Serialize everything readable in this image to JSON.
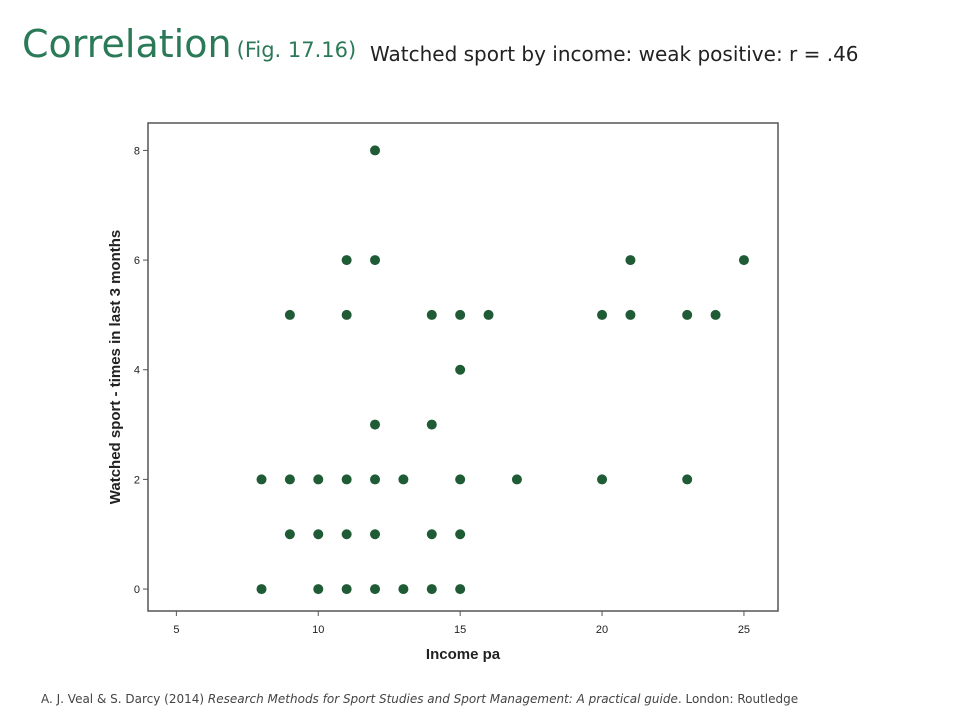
{
  "slide": {
    "title": "Correlation",
    "figure_ref": "(Fig. 17.16)",
    "subtitle": "Watched sport by income: weak positive: r = .46"
  },
  "citation": {
    "authors_year": "A. J. Veal & S. Darcy (2014)",
    "book_title": "Research Methods for Sport Studies and Sport Management: A practical guide",
    "publisher": ". London: Routledge"
  },
  "colors": {
    "title": "#2a7a58",
    "point": "#1f5c36"
  },
  "chart_data": {
    "type": "scatter",
    "title": "",
    "xlabel": "Income pa",
    "ylabel": "Watched sport - times in last 3 months",
    "xlim": [
      4,
      26.2
    ],
    "ylim": [
      -0.4,
      8.5
    ],
    "xticks": [
      5,
      10,
      15,
      20,
      25
    ],
    "yticks": [
      0,
      2,
      4,
      6,
      8
    ],
    "grid": false,
    "points": [
      {
        "x": 12,
        "y": 8
      },
      {
        "x": 11,
        "y": 6
      },
      {
        "x": 12,
        "y": 6
      },
      {
        "x": 21,
        "y": 6
      },
      {
        "x": 25,
        "y": 6
      },
      {
        "x": 9,
        "y": 5
      },
      {
        "x": 11,
        "y": 5
      },
      {
        "x": 14,
        "y": 5
      },
      {
        "x": 15,
        "y": 5
      },
      {
        "x": 16,
        "y": 5
      },
      {
        "x": 20,
        "y": 5
      },
      {
        "x": 21,
        "y": 5
      },
      {
        "x": 23,
        "y": 5
      },
      {
        "x": 24,
        "y": 5
      },
      {
        "x": 15,
        "y": 4
      },
      {
        "x": 12,
        "y": 3
      },
      {
        "x": 14,
        "y": 3
      },
      {
        "x": 8,
        "y": 2
      },
      {
        "x": 9,
        "y": 2
      },
      {
        "x": 10,
        "y": 2
      },
      {
        "x": 11,
        "y": 2
      },
      {
        "x": 12,
        "y": 2
      },
      {
        "x": 13,
        "y": 2
      },
      {
        "x": 15,
        "y": 2
      },
      {
        "x": 17,
        "y": 2
      },
      {
        "x": 20,
        "y": 2
      },
      {
        "x": 23,
        "y": 2
      },
      {
        "x": 9,
        "y": 1
      },
      {
        "x": 10,
        "y": 1
      },
      {
        "x": 11,
        "y": 1
      },
      {
        "x": 12,
        "y": 1
      },
      {
        "x": 14,
        "y": 1
      },
      {
        "x": 15,
        "y": 1
      },
      {
        "x": 8,
        "y": 0
      },
      {
        "x": 10,
        "y": 0
      },
      {
        "x": 11,
        "y": 0
      },
      {
        "x": 12,
        "y": 0
      },
      {
        "x": 13,
        "y": 0
      },
      {
        "x": 14,
        "y": 0
      },
      {
        "x": 15,
        "y": 0
      }
    ]
  }
}
